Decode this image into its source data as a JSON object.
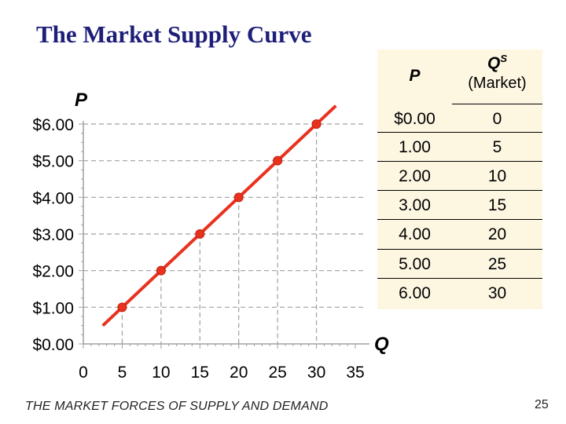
{
  "slide": {
    "title": "The Market Supply Curve",
    "footer": "THE MARKET FORCES OF SUPPLY AND DEMAND",
    "page_number": "25"
  },
  "table": {
    "header_p": "P",
    "header_q": "Q",
    "header_q_sup": "S",
    "header_q_sub": "(Market)",
    "rows": [
      {
        "p": "$0.00",
        "q": "0"
      },
      {
        "p": "1.00",
        "q": "5"
      },
      {
        "p": "2.00",
        "q": "10"
      },
      {
        "p": "3.00",
        "q": "15"
      },
      {
        "p": "4.00",
        "q": "20"
      },
      {
        "p": "5.00",
        "q": "25"
      },
      {
        "p": "6.00",
        "q": "30"
      }
    ]
  },
  "chart_data": {
    "type": "line",
    "title": "",
    "xlabel": "Q",
    "ylabel": "P",
    "xlim": [
      0,
      35
    ],
    "ylim": [
      0,
      6
    ],
    "x_ticks": [
      0,
      5,
      10,
      15,
      20,
      25,
      30,
      35
    ],
    "x_tick_labels": [
      "0",
      "5",
      "10",
      "15",
      "20",
      "25",
      "30",
      "35"
    ],
    "y_ticks": [
      0,
      1,
      2,
      3,
      4,
      5,
      6
    ],
    "y_tick_labels": [
      "$0.00",
      "$1.00",
      "$2.00",
      "$3.00",
      "$4.00",
      "$5.00",
      "$6.00"
    ],
    "grid": "dashed",
    "series": [
      {
        "x": [
          5,
          10,
          15,
          20,
          25,
          30
        ],
        "y": [
          1,
          2,
          3,
          4,
          5,
          6
        ],
        "line_extends_to": {
          "from": [
            2.5,
            0.5
          ],
          "to": [
            32.5,
            6.5
          ]
        },
        "color": "#e8321e",
        "marker_color": "#e8321e"
      }
    ],
    "guide_lines": "dashed drop lines from each point to both axes",
    "legend": "none"
  }
}
